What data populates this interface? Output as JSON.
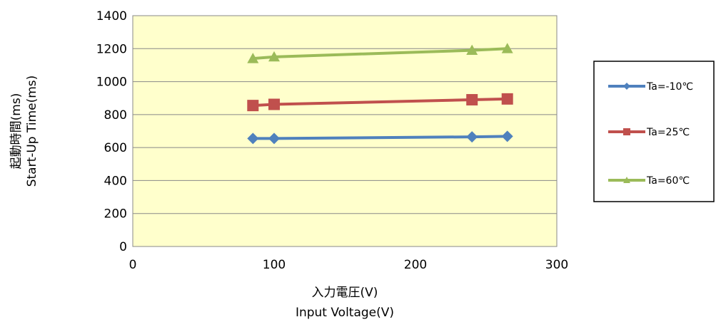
{
  "chart_data": {
    "type": "line",
    "xlabel": "入力電圧(V)",
    "xlabel_en": "Input  Voltage(V)",
    "ylabel": "起動時間(ms)",
    "ylabel_en": "Start-Up Time(ms)",
    "xlim": [
      0,
      300
    ],
    "ylim": [
      0,
      1400
    ],
    "x_ticks": [
      0,
      100,
      200,
      300
    ],
    "y_ticks": [
      0,
      200,
      400,
      600,
      800,
      1000,
      1200,
      1400
    ],
    "grid": "horizontal",
    "legend_position": "right",
    "plot_background": "#FFFFCC",
    "series": [
      {
        "name": "Ta=-10℃",
        "color": "#4F81BD",
        "marker": "diamond",
        "x": [
          85,
          100,
          240,
          265
        ],
        "y": [
          655,
          655,
          665,
          668
        ]
      },
      {
        "name": "Ta=25℃",
        "color": "#C0504D",
        "marker": "square",
        "x": [
          85,
          100,
          240,
          265
        ],
        "y": [
          855,
          862,
          890,
          895
        ]
      },
      {
        "name": "Ta=60℃",
        "color": "#9BBB59",
        "marker": "triangle",
        "x": [
          85,
          100,
          240,
          265
        ],
        "y": [
          1140,
          1150,
          1190,
          1200
        ]
      }
    ]
  }
}
